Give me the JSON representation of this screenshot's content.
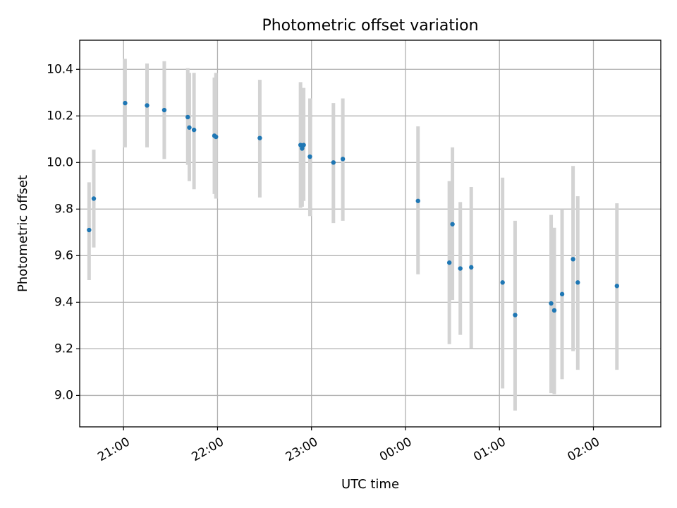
{
  "chart_data": {
    "type": "scatter",
    "title": "Photometric offset variation",
    "xlabel": "UTC time",
    "ylabel": "Photometric offset",
    "ylim": [
      8.865,
      10.525
    ],
    "xlim": [
      "20:32",
      "02:43"
    ],
    "x_ticks": [
      "21:00",
      "22:00",
      "23:00",
      "00:00",
      "01:00",
      "02:00"
    ],
    "y_ticks": [
      "9.0",
      "9.2",
      "9.4",
      "9.6",
      "9.8",
      "10.0",
      "10.2",
      "10.4"
    ],
    "grid": true,
    "colors": {
      "point": "#1f77b4",
      "errorbar": "#d3d3d3"
    },
    "series": [
      {
        "x": [
          "20:38",
          "20:41",
          "21:01",
          "21:15",
          "21:26",
          "21:41",
          "21:42",
          "21:45",
          "21:58",
          "21:59",
          "22:27",
          "22:53",
          "22:54",
          "22:55",
          "22:59",
          "23:14",
          "23:20",
          "00:08",
          "00:28",
          "00:30",
          "00:35",
          "00:42",
          "01:02",
          "01:10",
          "01:33",
          "01:35",
          "01:40",
          "01:47",
          "01:50",
          "02:15"
        ],
        "y": [
          9.71,
          9.845,
          10.255,
          10.245,
          10.225,
          10.195,
          10.15,
          10.14,
          10.115,
          10.11,
          10.105,
          10.075,
          10.06,
          10.075,
          10.025,
          10.0,
          10.015,
          9.835,
          9.57,
          9.735,
          9.545,
          9.55,
          9.485,
          9.345,
          9.395,
          9.365,
          9.435,
          9.585,
          9.485,
          9.47
        ],
        "err_low": [
          9.495,
          9.635,
          10.065,
          10.065,
          10.015,
          9.99,
          9.92,
          9.885,
          9.865,
          9.845,
          9.85,
          9.805,
          9.81,
          9.835,
          9.77,
          9.74,
          9.75,
          9.52,
          9.22,
          9.41,
          9.26,
          9.2,
          9.03,
          8.935,
          9.01,
          9.005,
          9.07,
          9.19,
          9.11,
          9.11
        ],
        "err_high": [
          9.915,
          10.055,
          10.445,
          10.425,
          10.435,
          10.405,
          10.385,
          10.385,
          10.365,
          10.385,
          10.355,
          10.345,
          10.31,
          10.32,
          10.275,
          10.255,
          10.275,
          10.155,
          9.92,
          10.065,
          9.83,
          9.895,
          9.935,
          9.75,
          9.775,
          9.72,
          9.8,
          9.985,
          9.855,
          9.825
        ]
      }
    ]
  }
}
